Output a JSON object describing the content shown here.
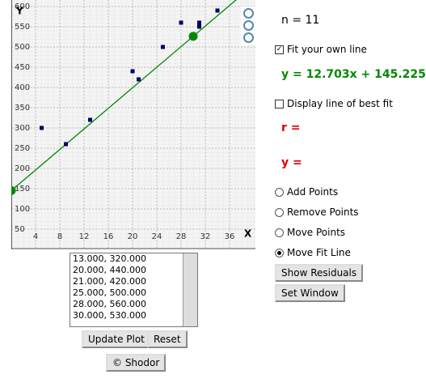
{
  "chart_data": {
    "type": "scatter",
    "x_label": "X",
    "y_label": "Y",
    "x": [
      5,
      9,
      13,
      20,
      21,
      25,
      28,
      30,
      31,
      31,
      34
    ],
    "values": [
      300,
      260,
      320,
      440,
      420,
      500,
      560,
      530,
      550,
      560,
      590
    ],
    "color": "#000066",
    "line_color": "#008800",
    "fit_line": {
      "slope": 12.703,
      "intercept": 145.225,
      "handles_x": [
        0,
        30
      ]
    },
    "xlim": [
      0,
      40
    ],
    "ylim": [
      0,
      616
    ],
    "xticks": [
      4,
      8,
      12,
      16,
      20,
      24,
      28,
      32,
      36
    ],
    "yticks": [
      50,
      100,
      150,
      200,
      250,
      300,
      350,
      400,
      450,
      500,
      550,
      600
    ],
    "grid": true
  },
  "panel": {
    "n_label": "n = 11",
    "fit_own_line": "Fit your own line",
    "equation": "y = 12.703x + 145.225",
    "best_fit": "Display line of best fit",
    "r_label": "r =",
    "y_label": "y =",
    "modes": [
      "Add Points",
      "Remove Points",
      "Move Points",
      "Move Fit Line"
    ],
    "buttons": [
      "Show Residuals",
      "Set Window"
    ]
  },
  "list": {
    "items": [
      "13.000, 320.000",
      "20.000, 440.000",
      "21.000, 420.000",
      "25.000, 500.000",
      "28.000, 560.000",
      "30.000, 530.000"
    ]
  },
  "bottom_buttons": [
    "Update Plot",
    "Reset",
    "© Shodor"
  ]
}
